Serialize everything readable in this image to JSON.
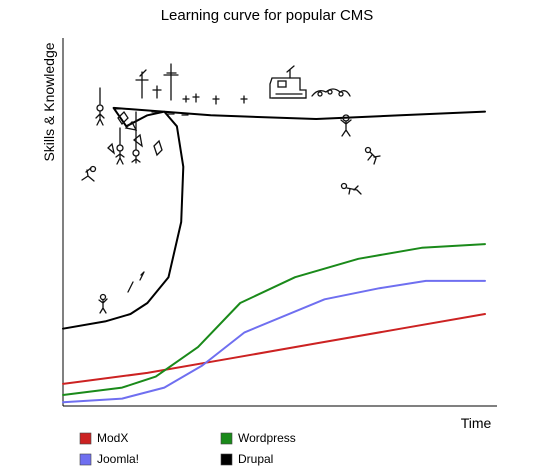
{
  "chart_data": {
    "type": "line",
    "title": "Learning curve for popular CMS",
    "xlabel": "Time",
    "ylabel": "Skills & Knowledge",
    "xlim": [
      0,
      100
    ],
    "ylim": [
      0,
      100
    ],
    "grid": false,
    "legend_position": "bottom",
    "series": [
      {
        "name": "ModX",
        "color": "#cc2222",
        "x": [
          0,
          20,
          40,
          60,
          80,
          100
        ],
        "y": [
          6,
          9,
          13,
          17,
          21,
          25
        ]
      },
      {
        "name": "Wordpress",
        "color": "#1a8a1a",
        "x": [
          0,
          14,
          22,
          32,
          42,
          55,
          70,
          85,
          100
        ],
        "y": [
          3,
          5,
          8,
          16,
          28,
          35,
          40,
          43,
          44
        ]
      },
      {
        "name": "Joomla!",
        "color": "#6f6ff0",
        "x": [
          0,
          14,
          24,
          33,
          43,
          62,
          75,
          86,
          100
        ],
        "y": [
          1,
          2,
          5,
          11,
          20,
          29,
          32,
          34,
          34
        ]
      },
      {
        "name": "Drupal",
        "color": "#000000",
        "x": [
          0,
          10,
          16,
          20,
          25,
          28,
          28.5,
          27,
          24,
          20,
          15,
          12,
          35,
          60,
          80,
          100
        ],
        "y": [
          21,
          23,
          25,
          28,
          35,
          50,
          65,
          76,
          80,
          79,
          76,
          81,
          79,
          78,
          79,
          80
        ]
      }
    ]
  }
}
